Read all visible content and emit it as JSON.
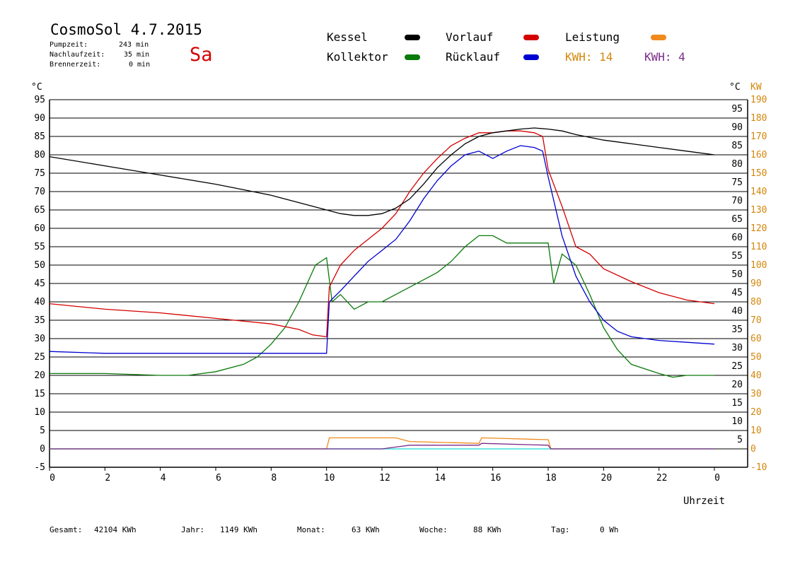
{
  "header": {
    "title": "CosmoSol 4.7.2015",
    "weekday": "Sa",
    "stats": [
      {
        "label": "Pumpzeit:",
        "value": "243 min"
      },
      {
        "label": "Nachlaufzeit:",
        "value": "35 min"
      },
      {
        "label": "Brennerzeit:",
        "value": "0 min"
      }
    ]
  },
  "legend": {
    "kessel": "Kessel",
    "vorlauf": "Vorlauf",
    "leistung": "Leistung",
    "kollektor": "Kollektor",
    "ruecklauf": "Rücklauf",
    "kwh1": "KWH: 14",
    "kwh2": "KWH: 4"
  },
  "colors": {
    "kessel": "#000000",
    "vorlauf": "#d40000",
    "leistung": "#f08a1c",
    "kollektor": "#0a7a0a",
    "ruecklauf": "#0000d0",
    "kwh2": "#7a2a8a",
    "baseline": "#44dddd",
    "rightAxis": "#d4860a"
  },
  "footer": [
    {
      "label": "Gesamt:",
      "value": "42104 KWh"
    },
    {
      "label": "Jahr:",
      "value": "1149 KWh"
    },
    {
      "label": "Monat:",
      "value": "63 KWh"
    },
    {
      "label": "Woche:",
      "value": "88 KWh"
    },
    {
      "label": "Tag:",
      "value": "0 Wh"
    }
  ],
  "chart_data": {
    "type": "line",
    "xlabel": "Uhrzeit",
    "ylabel_left": "°C",
    "ylabel_right_temp": "°C",
    "ylabel_right_power": "KW",
    "xlim": [
      0,
      24
    ],
    "ylim": [
      -5,
      95
    ],
    "ylim_power": [
      -10,
      190
    ],
    "x_ticks": [
      "0",
      "2",
      "4",
      "6",
      "8",
      "10",
      "12",
      "14",
      "16",
      "18",
      "20",
      "22",
      "0"
    ],
    "y_ticks_left": [
      "95",
      "90",
      "85",
      "80",
      "75",
      "70",
      "65",
      "60",
      "55",
      "50",
      "45",
      "40",
      "35",
      "30",
      "25",
      "20",
      "15",
      "10",
      "5",
      "0",
      "-5"
    ],
    "y_ticks_right_temp": [
      "95",
      "90",
      "85",
      "80",
      "75",
      "70",
      "65",
      "60",
      "55",
      "50",
      "45",
      "40",
      "35",
      "30",
      "25",
      "20",
      "15",
      "10",
      "5"
    ],
    "y_ticks_right_power": [
      "190",
      "180",
      "170",
      "160",
      "150",
      "140",
      "130",
      "120",
      "110",
      "100",
      "90",
      "80",
      "70",
      "60",
      "50",
      "40",
      "30",
      "20",
      "10",
      "0",
      "-10"
    ],
    "grid": true,
    "legend_position": "top",
    "series": [
      {
        "name": "Kessel",
        "color": "#000000",
        "x": [
          0,
          2,
          4,
          6,
          7,
          8,
          9,
          10,
          10.5,
          11,
          11.5,
          12,
          12.5,
          13,
          13.5,
          14,
          14.5,
          15,
          15.5,
          16,
          16.5,
          17,
          17.5,
          18,
          18.5,
          19,
          20,
          21,
          22,
          23,
          24
        ],
        "y": [
          79.5,
          77,
          74.5,
          72,
          70.5,
          69,
          67,
          65,
          64,
          63.5,
          63.5,
          64,
          65.5,
          68,
          72,
          76.5,
          80,
          83,
          85,
          86,
          86.5,
          87,
          87.3,
          87,
          86.5,
          85.5,
          84,
          83,
          82,
          81,
          80
        ]
      },
      {
        "name": "Vorlauf",
        "color": "#d40000",
        "x": [
          0,
          2,
          4,
          6,
          8,
          9,
          9.5,
          10,
          10.1,
          10.5,
          11,
          11.5,
          12,
          12.5,
          13,
          13.5,
          14,
          14.5,
          15,
          15.5,
          16,
          16.5,
          17,
          17.5,
          17.8,
          18,
          18.5,
          19,
          19.5,
          20,
          21,
          22,
          23,
          24
        ],
        "y": [
          39.5,
          38,
          37,
          35.5,
          34,
          32.5,
          31,
          30.5,
          44,
          50,
          54,
          57,
          60,
          64,
          70,
          75,
          79,
          82.5,
          84.5,
          86,
          86,
          86.5,
          86.5,
          86,
          85,
          76,
          66,
          55,
          53,
          49,
          45.5,
          42.5,
          40.5,
          39.5
        ]
      },
      {
        "name": "Kollektor",
        "color": "#0a7a0a",
        "x": [
          0,
          2,
          4,
          5,
          6,
          7,
          7.5,
          8,
          8.5,
          9,
          9.3,
          9.6,
          10,
          10.2,
          10.5,
          11,
          11.5,
          12,
          12.5,
          13,
          13.5,
          14,
          14.5,
          15,
          15.5,
          16,
          16.5,
          17,
          17.5,
          18,
          18.2,
          18.5,
          19,
          19.5,
          20,
          20.5,
          21,
          22,
          22.5,
          23,
          24
        ],
        "y": [
          20.5,
          20.5,
          20,
          20,
          21,
          23,
          25,
          28.5,
          33,
          40,
          45,
          50,
          52,
          40,
          42,
          38,
          40,
          40,
          42,
          44,
          46,
          48,
          51,
          55,
          58,
          58,
          56,
          56,
          56,
          56,
          45,
          53,
          50,
          42,
          33,
          27,
          23,
          20.5,
          19.5,
          20,
          20
        ]
      },
      {
        "name": "Rücklauf",
        "color": "#0000d0",
        "x": [
          0,
          2,
          4,
          6,
          8,
          9,
          10,
          10.1,
          10.5,
          11,
          11.5,
          12,
          12.5,
          13,
          13.5,
          14,
          14.5,
          15,
          15.5,
          16,
          16.5,
          17,
          17.5,
          17.8,
          18,
          18.5,
          19,
          19.5,
          20,
          20.5,
          21,
          22,
          23,
          24
        ],
        "y": [
          26.5,
          26,
          26,
          26,
          26,
          26,
          26,
          40,
          43,
          47,
          51,
          54,
          57,
          62,
          68,
          73,
          77,
          80,
          81,
          79,
          81,
          82.5,
          82,
          81,
          74,
          58,
          47,
          40,
          35,
          32,
          30.5,
          29.5,
          29,
          28.5
        ]
      },
      {
        "name": "Leistung",
        "color": "#f08a1c",
        "x": [
          0,
          10,
          10.1,
          12.5,
          13,
          15.5,
          15.6,
          18,
          18.1,
          24
        ],
        "y": [
          0,
          0,
          3,
          3,
          2,
          1.5,
          3,
          2.5,
          0,
          0
        ]
      },
      {
        "name": "KWH: 4",
        "color": "#7a2a8a",
        "x": [
          0,
          12,
          12.5,
          13,
          15.5,
          15.6,
          18,
          18.1,
          24
        ],
        "y": [
          0,
          0,
          0.5,
          1,
          1,
          1.5,
          1,
          0,
          0
        ]
      }
    ]
  }
}
